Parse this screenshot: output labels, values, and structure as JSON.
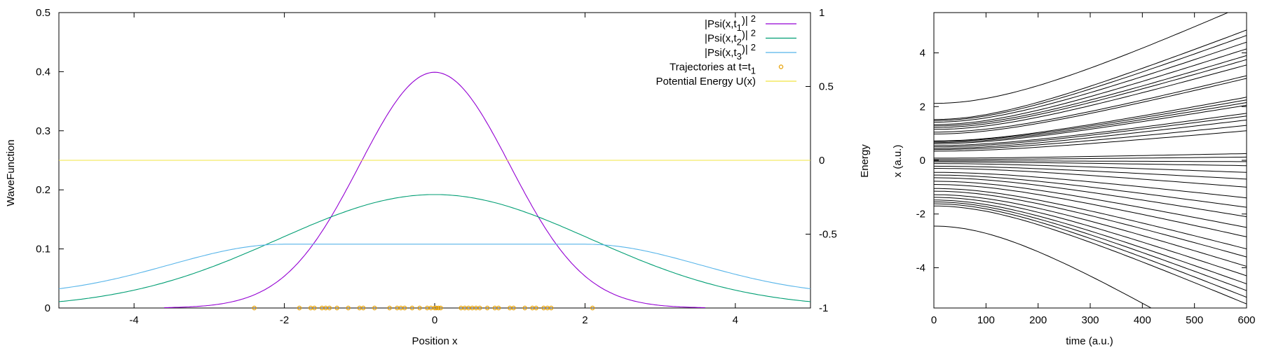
{
  "chart_data": [
    {
      "type": "line",
      "xlabel": "Position x",
      "ylabel": "WaveFunction",
      "y2label": "Energy",
      "xlim": [
        -5,
        5
      ],
      "ylim": [
        0,
        0.5
      ],
      "y2lim": [
        -1,
        1
      ],
      "xticks": [
        -4,
        -2,
        0,
        2,
        4
      ],
      "yticks": [
        0,
        0.1,
        0.2,
        0.3,
        0.4,
        0.5
      ],
      "y2ticks": [
        -1,
        -0.5,
        0,
        0.5,
        1
      ],
      "grid": false,
      "legend_position": "top-right",
      "series": [
        {
          "name": "|Psi(x,t1)|2",
          "label_main": "|Psi(x,t",
          "label_sub": "1",
          "label_tail": ")|",
          "label_sup": "2",
          "color": "#9400d3",
          "style": "line",
          "curve": {
            "form": "gaussian",
            "peak": 0.399,
            "center": 0,
            "sigma": 1.0
          },
          "x": [
            -3.6,
            -3,
            -2.5,
            -2,
            -1.5,
            -1,
            -0.5,
            0,
            0.5,
            1,
            1.5,
            2,
            2.5,
            3,
            3.6
          ],
          "y": [
            0.001,
            0.004,
            0.018,
            0.054,
            0.13,
            0.242,
            0.352,
            0.399,
            0.352,
            0.242,
            0.13,
            0.054,
            0.018,
            0.004,
            0.001
          ]
        },
        {
          "name": "|Psi(x,t2)|2",
          "label_main": "|Psi(x,t",
          "label_sub": "2",
          "label_tail": ")|",
          "label_sup": "2",
          "color": "#009e73",
          "style": "line",
          "curve": {
            "form": "gaussian",
            "peak": 0.192,
            "center": 0,
            "sigma": 2.08
          },
          "x": [
            -5,
            -4,
            -3,
            -2,
            -1,
            0,
            1,
            2,
            3,
            4,
            5
          ],
          "y": [
            0.0096,
            0.03,
            0.068,
            0.121,
            0.17,
            0.192,
            0.17,
            0.121,
            0.068,
            0.03,
            0.0096
          ]
        },
        {
          "name": "|Psi(x,t3)|2",
          "label_main": "|Psi(x,t",
          "label_sub": "3",
          "label_tail": ")|",
          "label_sup": "2",
          "color": "#56b4e9",
          "style": "line",
          "curve": {
            "form": "flat-top",
            "peak": 0.108,
            "center": 0,
            "plateau": 2.0,
            "sigma": 2.15,
            "floor": 0.02
          },
          "x": [
            -5,
            -4,
            -3,
            -2,
            -1,
            0,
            1,
            2,
            3,
            4,
            5
          ],
          "y": [
            0.038,
            0.052,
            0.086,
            0.108,
            0.108,
            0.108,
            0.108,
            0.108,
            0.086,
            0.052,
            0.038
          ]
        },
        {
          "name": "Trajectories at t=t1",
          "label_main": "Trajectories at t=t",
          "label_sub": "1",
          "label_tail": "",
          "label_sup": "",
          "color": "#e69f00",
          "style": "points",
          "x": [
            -2.4,
            -1.8,
            -1.65,
            -1.6,
            -1.5,
            -1.45,
            -1.4,
            -1.3,
            -1.15,
            -1.0,
            -0.95,
            -0.8,
            -0.6,
            -0.5,
            -0.45,
            -0.4,
            -0.3,
            -0.2,
            -0.1,
            -0.05,
            0.0,
            0.02,
            0.05,
            0.08,
            0.35,
            0.4,
            0.45,
            0.5,
            0.55,
            0.6,
            0.7,
            0.8,
            0.85,
            1.0,
            1.05,
            1.2,
            1.3,
            1.35,
            1.45,
            1.5,
            1.55,
            2.1
          ],
          "y": [
            0,
            0,
            0,
            0,
            0,
            0,
            0,
            0,
            0,
            0,
            0,
            0,
            0,
            0,
            0,
            0,
            0,
            0,
            0,
            0,
            0,
            0,
            0,
            0,
            0,
            0,
            0,
            0,
            0,
            0,
            0,
            0,
            0,
            0,
            0,
            0,
            0,
            0,
            0,
            0,
            0,
            0
          ]
        },
        {
          "name": "Potential Energy U(x)",
          "label_main": "Potential Energy U(x)",
          "label_sub": "",
          "label_tail": "",
          "label_sup": "",
          "color": "#f0e442",
          "style": "line",
          "axis": "y2",
          "x": [
            -5,
            5
          ],
          "y": [
            0,
            0
          ]
        }
      ]
    },
    {
      "type": "line",
      "xlabel": "time (a.u.)",
      "ylabel": "x (a.u.)",
      "xlim": [
        0,
        600
      ],
      "ylim": [
        -5.5,
        5.5
      ],
      "xticks": [
        0,
        100,
        200,
        300,
        400,
        500,
        600
      ],
      "yticks": [
        -4,
        -2,
        0,
        2,
        4
      ],
      "grid": false,
      "line_color": "#000000",
      "series": [
        {
          "x0": 2.12,
          "x600": 5.8
        },
        {
          "x0": 1.52,
          "x600": 4.85
        },
        {
          "x0": 1.48,
          "x600": 4.65
        },
        {
          "x0": 1.42,
          "x600": 4.4
        },
        {
          "x0": 1.33,
          "x600": 4.15
        },
        {
          "x0": 1.28,
          "x600": 3.9
        },
        {
          "x0": 1.22,
          "x600": 3.75
        },
        {
          "x0": 1.15,
          "x600": 3.55
        },
        {
          "x0": 1.05,
          "x600": 3.15
        },
        {
          "x0": 0.98,
          "x600": 3.05
        },
        {
          "x0": 0.72,
          "x600": 2.35
        },
        {
          "x0": 0.7,
          "x600": 2.25
        },
        {
          "x0": 0.66,
          "x600": 2.15
        },
        {
          "x0": 0.62,
          "x600": 2.05
        },
        {
          "x0": 0.55,
          "x600": 1.75
        },
        {
          "x0": 0.5,
          "x600": 1.65
        },
        {
          "x0": 0.44,
          "x600": 1.5
        },
        {
          "x0": 0.4,
          "x600": 1.3
        },
        {
          "x0": 0.34,
          "x600": 1.1
        },
        {
          "x0": 0.08,
          "x600": 0.25
        },
        {
          "x0": 0.03,
          "x600": 0.12
        },
        {
          "x0": -0.02,
          "x600": -0.05
        },
        {
          "x0": -0.06,
          "x600": -0.2
        },
        {
          "x0": -0.12,
          "x600": -0.45
        },
        {
          "x0": -0.22,
          "x600": -0.7
        },
        {
          "x0": -0.3,
          "x600": -1.0
        },
        {
          "x0": -0.45,
          "x600": -1.4
        },
        {
          "x0": -0.55,
          "x600": -1.75
        },
        {
          "x0": -0.65,
          "x600": -2.1
        },
        {
          "x0": -0.78,
          "x600": -2.5
        },
        {
          "x0": -0.9,
          "x600": -2.85
        },
        {
          "x0": -1.05,
          "x600": -3.3
        },
        {
          "x0": -1.15,
          "x600": -3.6
        },
        {
          "x0": -1.28,
          "x600": -3.95
        },
        {
          "x0": -1.38,
          "x600": -4.3
        },
        {
          "x0": -1.48,
          "x600": -4.6
        },
        {
          "x0": -1.55,
          "x600": -4.85
        },
        {
          "x0": -1.62,
          "x600": -5.1
        },
        {
          "x0": -1.7,
          "x600": -5.35
        },
        {
          "x0": -2.45,
          "x600": -7.5
        }
      ]
    }
  ]
}
